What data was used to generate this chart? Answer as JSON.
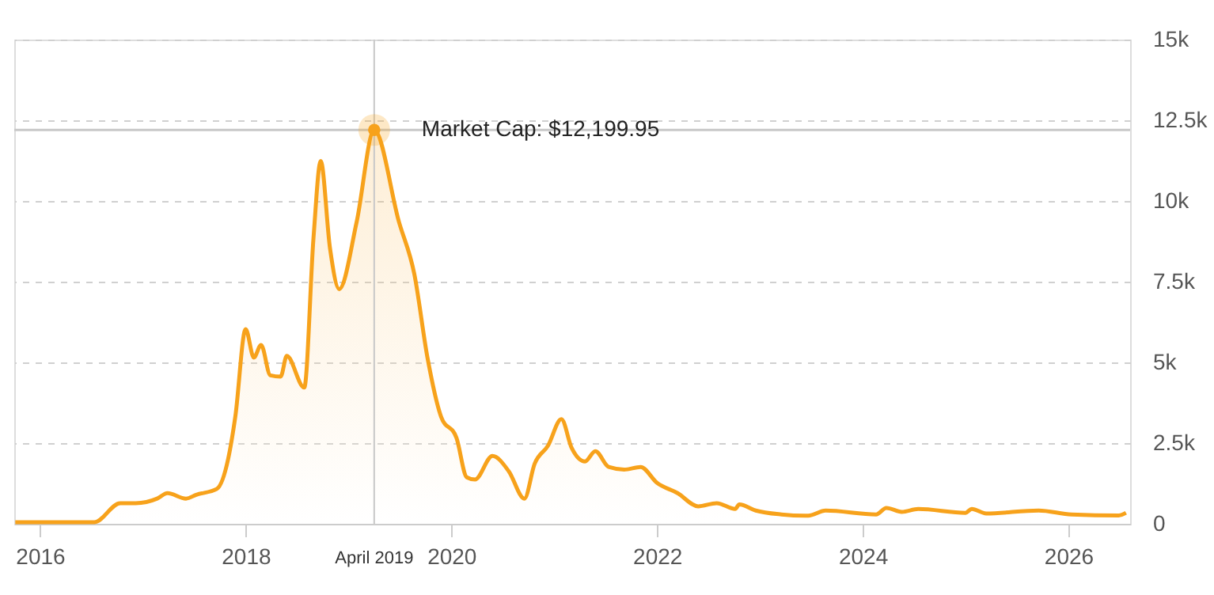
{
  "chart_data": {
    "type": "area",
    "series": [
      {
        "color": "#f7a21b",
        "x": [
          2015.76,
          2016.53,
          2016.78,
          2016.93,
          2017.14,
          2017.24,
          2017.42,
          2017.52,
          2017.72,
          2017.83,
          2017.9,
          2018.0,
          2018.08,
          2018.15,
          2018.24,
          2018.34,
          2018.4,
          2018.57,
          2018.66,
          2018.73,
          2018.82,
          2018.91,
          2019.08,
          2019.25,
          2019.49,
          2019.64,
          2019.77,
          2019.9,
          2020.05,
          2020.15,
          2020.23,
          2020.4,
          2020.56,
          2020.71,
          2020.81,
          2020.94,
          2021.07,
          2021.17,
          2021.3,
          2021.4,
          2021.53,
          2021.68,
          2021.84,
          2022.0,
          2022.2,
          2022.4,
          2022.58,
          2022.76,
          2022.8,
          2022.96,
          2023.21,
          2023.47,
          2023.64,
          2024.13,
          2024.23,
          2024.38,
          2024.54,
          2025.0,
          2025.06,
          2025.2,
          2025.71,
          2026.03,
          2026.49,
          2026.56
        ],
        "values": [
          50,
          50,
          640,
          640,
          780,
          950,
          780,
          900,
          1080,
          2010,
          3330,
          6030,
          5150,
          5540,
          4600,
          4560,
          5200,
          4220,
          8870,
          11240,
          8540,
          7270,
          9360,
          12199.95,
          9360,
          7740,
          5110,
          3320,
          2660,
          1440,
          1370,
          2100,
          1620,
          780,
          1860,
          2420,
          3240,
          2350,
          1930,
          2250,
          1760,
          1680,
          1760,
          1270,
          950,
          540,
          640,
          460,
          600,
          410,
          290,
          250,
          410,
          290,
          490,
          370,
          460,
          340,
          460,
          320,
          410,
          290,
          260,
          340
        ]
      }
    ],
    "xlim": [
      2015.75,
      2026.6
    ],
    "xticks": [
      2016,
      2018,
      2020,
      2022,
      2024,
      2026
    ],
    "ylim": [
      0,
      15000
    ],
    "yticks": [
      0,
      {
        "value": 2500,
        "label": "2.5k"
      },
      {
        "value": 5000,
        "label": "5k"
      },
      {
        "value": 7500,
        "label": "7.5k"
      },
      {
        "value": 10000,
        "label": "10k"
      },
      {
        "value": 12500,
        "label": "12.5k"
      },
      {
        "value": 15000,
        "label": "15k"
      }
    ],
    "grid": "y",
    "ref_lines": [
      {
        "axis": "x",
        "value": 2019.25,
        "label": "April 2019",
        "color": "#c8c8c8"
      },
      {
        "axis": "y",
        "value": 12199.95,
        "color": "#c8c8c8"
      }
    ],
    "annotations": [
      {
        "text": "Market Cap: $12,199.95",
        "x": 2019.25,
        "y": 12199.95
      }
    ]
  }
}
